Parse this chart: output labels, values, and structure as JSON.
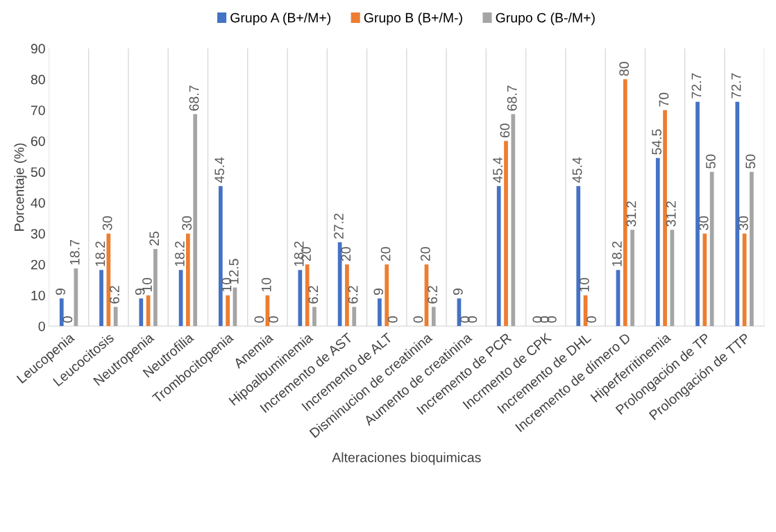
{
  "chart_data": {
    "type": "bar",
    "xlabel": "Alteraciones bioquimicas",
    "ylabel": "Porcentaje (%)",
    "categories": [
      "Leucopenia",
      "Leucocitosis",
      "Neutropenia",
      "Neutrofilia",
      "Trombocitopenia",
      "Anemia",
      "Hipoalbuminemia",
      "Incremento de AST",
      "Incremento de ALT",
      "Disminucion de creatinina",
      "Aumento de creatinina",
      "Incremento de PCR",
      "Incrmento de CPK",
      "Incremento de DHL",
      "Incremento de dímero D",
      "Hiperferritinemia",
      "Prolongación de TP",
      "Prolongación de TTP"
    ],
    "series": [
      {
        "name": "Grupo A (B+/M+)",
        "color": "#4472c4",
        "values": [
          9,
          18.2,
          9,
          18.2,
          45.4,
          0,
          18.2,
          27.2,
          9,
          0,
          9,
          45.4,
          0,
          45.4,
          18.2,
          54.5,
          72.7,
          72.7
        ]
      },
      {
        "name": "Grupo B (B+/M-)",
        "color": "#ed7d31",
        "values": [
          0,
          30,
          10,
          30,
          10,
          10,
          20,
          20,
          20,
          20,
          0,
          60,
          0,
          10,
          80,
          70,
          30,
          30
        ]
      },
      {
        "name": "Grupo C (B-/M+)",
        "color": "#a5a5a5",
        "values": [
          18.7,
          6.2,
          25,
          68.7,
          12.5,
          0,
          6.2,
          6.2,
          0,
          6.2,
          0,
          68.7,
          0,
          0,
          31.2,
          31.2,
          50,
          50
        ]
      }
    ],
    "ylim": [
      0,
      90
    ],
    "yticks": [
      0,
      10,
      20,
      30,
      40,
      50,
      60,
      70,
      80,
      90
    ],
    "grid": "x",
    "legend": "top",
    "data_labels": true
  }
}
